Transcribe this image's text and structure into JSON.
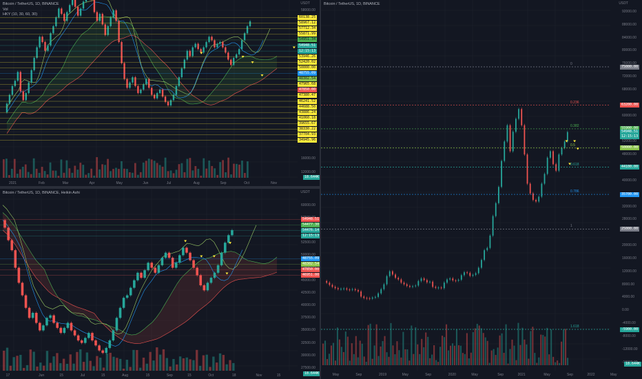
{
  "chart_data": [
    {
      "type": "candlestick",
      "title": "Bitcoin / TetherUS, 1D, BINANCE",
      "indicators": [
        "Vol",
        "HKY (10, 30, 60, 30)"
      ],
      "currency": "USDT",
      "y_ticks": [
        {
          "label": "58000.00",
          "v": 58000
        },
        {
          "label": "16000.00",
          "v": 16000
        },
        {
          "label": "12000.00",
          "v": 12000
        }
      ],
      "x_ticks": [
        {
          "label": "2021",
          "t": 0.03
        },
        {
          "label": "Feb",
          "t": 0.13
        },
        {
          "label": "Mar",
          "t": 0.21
        },
        {
          "label": "Apr",
          "t": 0.3
        },
        {
          "label": "May",
          "t": 0.39
        },
        {
          "label": "Jun",
          "t": 0.48
        },
        {
          "label": "Jul",
          "t": 0.56
        },
        {
          "label": "Aug",
          "t": 0.65
        },
        {
          "label": "Sep",
          "t": 0.74
        },
        {
          "label": "Oct",
          "t": 0.82
        },
        {
          "label": "Nov",
          "t": 0.91
        }
      ],
      "levels": [
        {
          "label": "60138.25",
          "color": "#ffeb3b"
        },
        {
          "label": "58967.12",
          "color": "#ffeb3b"
        },
        {
          "label": "57712.34",
          "color": "#ffeb3b"
        },
        {
          "label": "55871.99",
          "color": "#ffeb3b"
        },
        {
          "label": "54951.34",
          "color": "#4caf50"
        },
        {
          "label": "54948.51",
          "color": "#26a69a"
        },
        {
          "label": "12:15:13",
          "color": "#26a69a"
        },
        {
          "label": "53946.26",
          "color": "#ffeb3b"
        },
        {
          "label": "52420.02",
          "color": "#ffeb3b"
        },
        {
          "label": "50000.00",
          "color": "#ffeb3b"
        },
        {
          "label": "48755.09",
          "color": "#2196f3"
        },
        {
          "label": "48302.54",
          "color": "#8bc34a"
        },
        {
          "label": "47965.68",
          "color": "#ffeb3b"
        },
        {
          "label": "47850.00",
          "color": "#ef5350"
        },
        {
          "label": "47380.47",
          "color": "#ffeb3b"
        },
        {
          "label": "46241.52",
          "color": "#ffeb3b"
        },
        {
          "label": "44688.50",
          "color": "#ffeb3b"
        },
        {
          "label": "43886.24",
          "color": "#ffeb3b"
        },
        {
          "label": "41060.18",
          "color": "#ffeb3b"
        },
        {
          "label": "39655.67",
          "color": "#ffeb3b"
        },
        {
          "label": "38330.22",
          "color": "#ffeb3b"
        },
        {
          "label": "37704.93",
          "color": "#ffeb3b"
        },
        {
          "label": "34945.96",
          "color": "#ffeb3b"
        }
      ],
      "volume_label": "18.644K",
      "series": [
        {
          "values": [
            29000,
            31500,
            34000,
            36500,
            38000,
            40500,
            35000,
            32500,
            34500,
            37500,
            41000,
            44500,
            47500,
            50500,
            49000,
            46500,
            48000,
            51500,
            53500,
            56000,
            58500,
            57000,
            55000,
            57500,
            59500,
            61500,
            59000,
            56500,
            58500,
            60500,
            62500,
            64000,
            61000,
            57500,
            55000,
            57000,
            54000,
            51000,
            53500,
            56000,
            58000,
            55000,
            49000,
            43000,
            38500,
            36000,
            37500,
            39000,
            36500,
            34500,
            35500,
            37000,
            38500,
            36000,
            34000,
            33000,
            34500,
            35500,
            33500,
            32000,
            31000,
            32500,
            34000,
            36500,
            39000,
            41500,
            44000,
            46500,
            45000,
            47500,
            48500,
            47000,
            46000,
            47500,
            49000,
            50500,
            49500,
            47500,
            48500,
            49000,
            47500,
            46000,
            44000,
            42500,
            44500,
            45500,
            47000,
            49500,
            51500,
            53500,
            54900
          ]
        }
      ]
    },
    {
      "type": "candlestick",
      "title": "Bitcoin / TetherUS, 1D, BINANCE, Heikin Ashi",
      "currency": "USDT",
      "y_ticks": [
        {
          "label": "60000.00",
          "v": 60000
        },
        {
          "label": "57500.00",
          "v": 57500
        },
        {
          "label": "55000.00",
          "v": 55000
        },
        {
          "label": "52500.00",
          "v": 52500
        },
        {
          "label": "50000.00",
          "v": 50000
        },
        {
          "label": "47500.00",
          "v": 47500
        },
        {
          "label": "45000.00",
          "v": 45000
        },
        {
          "label": "42500.00",
          "v": 42500
        },
        {
          "label": "40000.00",
          "v": 40000
        },
        {
          "label": "37500.00",
          "v": 37500
        },
        {
          "label": "35000.00",
          "v": 35000
        },
        {
          "label": "32500.00",
          "v": 32500
        },
        {
          "label": "30000.00",
          "v": 30000
        },
        {
          "label": "27500.00",
          "v": 27500
        }
      ],
      "x_ticks": [
        {
          "label": "17",
          "t": 0.02
        },
        {
          "label": "Jun",
          "t": 0.13
        },
        {
          "label": "15",
          "t": 0.2
        },
        {
          "label": "Jul",
          "t": 0.27
        },
        {
          "label": "15",
          "t": 0.34
        },
        {
          "label": "Aug",
          "t": 0.41
        },
        {
          "label": "15",
          "t": 0.49
        },
        {
          "label": "Sep",
          "t": 0.56
        },
        {
          "label": "15",
          "t": 0.63
        },
        {
          "label": "Oct",
          "t": 0.7
        },
        {
          "label": "18",
          "t": 0.78
        },
        {
          "label": "Nov",
          "t": 0.86
        },
        {
          "label": "15",
          "t": 0.93
        }
      ],
      "levels": [
        {
          "label": "54948.51",
          "color": "#ef5350"
        },
        {
          "label": "54477.30",
          "color": "#4caf50"
        },
        {
          "label": "54476.14",
          "color": "#26a69a"
        },
        {
          "label": "12:15:13",
          "color": "#26a69a"
        },
        {
          "label": "48755.09",
          "color": "#2196f3"
        },
        {
          "label": "48302.54",
          "color": "#8bc34a"
        },
        {
          "label": "47850.00",
          "color": "#ef5350"
        },
        {
          "label": "46951.00",
          "color": "#ef5350"
        }
      ],
      "volume_label": "18.644K",
      "series": [
        {
          "values": [
            57000,
            55500,
            53000,
            51000,
            47500,
            44500,
            42000,
            39500,
            37500,
            38500,
            36500,
            35000,
            36000,
            37500,
            38000,
            36500,
            35500,
            34500,
            35500,
            36500,
            35000,
            34000,
            33000,
            32500,
            33500,
            34500,
            33000,
            32000,
            31000,
            30500,
            31500,
            33000,
            35000,
            37500,
            39500,
            41500,
            42000,
            43500,
            45000,
            46500,
            45500,
            47000,
            48500,
            47500,
            46500,
            48000,
            49500,
            50500,
            49500,
            47500,
            48500,
            50000,
            51500,
            50500,
            49000,
            47500,
            46000,
            44000,
            43000,
            44500,
            45500,
            46500,
            48000,
            50500,
            52500,
            54000,
            55000
          ]
        }
      ]
    },
    {
      "type": "candlestick",
      "title": "Bitcoin / TetherUS, 1D, BINANCE",
      "currency": "USDT",
      "y_ticks": [
        {
          "label": "92000.00",
          "v": 92000
        },
        {
          "label": "88000.00",
          "v": 88000
        },
        {
          "label": "84000.00",
          "v": 84000
        },
        {
          "label": "80000.00",
          "v": 80000
        },
        {
          "label": "76000.00",
          "v": 76000
        },
        {
          "label": "72000.00",
          "v": 72000
        },
        {
          "label": "68000.00",
          "v": 68000
        },
        {
          "label": "60000.00",
          "v": 60000
        },
        {
          "label": "56000.00",
          "v": 56000
        },
        {
          "label": "52000.00",
          "v": 52000
        },
        {
          "label": "48000.00",
          "v": 48000
        },
        {
          "label": "40000.00",
          "v": 40000
        },
        {
          "label": "32000.00",
          "v": 32000
        },
        {
          "label": "28000.00",
          "v": 28000
        },
        {
          "label": "20000.00",
          "v": 20000
        },
        {
          "label": "16000.00",
          "v": 16000
        },
        {
          "label": "12000.00",
          "v": 12000
        },
        {
          "label": "8000.00",
          "v": 8000
        },
        {
          "label": "4000.00",
          "v": 4000
        },
        {
          "label": "0.00",
          "v": 0
        },
        {
          "label": "-4000.00",
          "v": -4000
        },
        {
          "label": "-8000.00",
          "v": -8000
        },
        {
          "label": "-12000.00",
          "v": -12000
        },
        {
          "label": "-16000.00",
          "v": -16000
        }
      ],
      "x_ticks": [
        {
          "label": "May",
          "t": 0.04
        },
        {
          "label": "Sep",
          "t": 0.12
        },
        {
          "label": "2019",
          "t": 0.2
        },
        {
          "label": "May",
          "t": 0.28
        },
        {
          "label": "Sep",
          "t": 0.36
        },
        {
          "label": "2020",
          "t": 0.44
        },
        {
          "label": "May",
          "t": 0.52
        },
        {
          "label": "Sep",
          "t": 0.61
        },
        {
          "label": "2021",
          "t": 0.68
        },
        {
          "label": "May",
          "t": 0.77
        },
        {
          "label": "Sep",
          "t": 0.85
        },
        {
          "label": "2022",
          "t": 0.92
        },
        {
          "label": "May",
          "t": 1.0
        }
      ],
      "fib_levels": [
        {
          "ratio": "0",
          "price_label": "75000.00",
          "v": 75000,
          "color": "#787b86"
        },
        {
          "ratio": "0.236",
          "price_label": "63200.00",
          "v": 63200,
          "color": "#ef5350"
        },
        {
          "ratio": "0.382",
          "price_label": "55900.00",
          "v": 55900,
          "color": "#4caf50"
        },
        {
          "ratio": "0.5",
          "price_label": "50000.00",
          "v": 50000,
          "color": "#8bc34a"
        },
        {
          "ratio": "0.618",
          "price_label": "44100.00",
          "v": 44100,
          "color": "#26a69a"
        },
        {
          "ratio": "0.786",
          "price_label": "35700.00",
          "v": 35700,
          "color": "#2196f3"
        },
        {
          "ratio": "1",
          "price_label": "25000.00",
          "v": 25000,
          "color": "#787b86"
        },
        {
          "ratio": "1.618",
          "price_label": "-5900.00",
          "v": -5900,
          "color": "#26a69a"
        }
      ],
      "current_price_labels": [
        "54948.51",
        "12:15:13"
      ],
      "volume_label": "18.644K",
      "series": [
        {
          "values": [
            9000,
            8500,
            7800,
            7200,
            6800,
            6500,
            6600,
            6700,
            6400,
            6300,
            6500,
            6200,
            5800,
            4200,
            3800,
            3700,
            3600,
            3900,
            4100,
            5200,
            6500,
            8000,
            10500,
            12000,
            11000,
            10000,
            9500,
            8500,
            8000,
            7500,
            7200,
            7400,
            7600,
            9000,
            9800,
            9300,
            8600,
            8800,
            7200,
            6900,
            7000,
            6800,
            8500,
            9500,
            9800,
            9200,
            9100,
            9400,
            10800,
            11700,
            11500,
            10600,
            10900,
            11400,
            13100,
            15500,
            18500,
            19200,
            23000,
            29000,
            33000,
            38000,
            46000,
            52000,
            57000,
            49000,
            55000,
            59000,
            62000,
            57000,
            48000,
            39000,
            36000,
            34000,
            33500,
            35000,
            39000,
            42000,
            47000,
            49000,
            45000,
            43000,
            48000,
            50000,
            52000,
            54900
          ]
        }
      ]
    }
  ]
}
